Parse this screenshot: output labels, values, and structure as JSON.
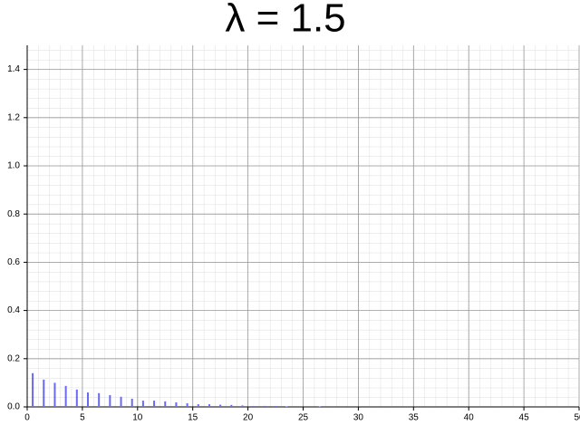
{
  "chart_data": {
    "type": "bar",
    "title": "λ = 1.5",
    "x": [
      0.5,
      1.5,
      2.5,
      3.5,
      4.5,
      5.5,
      6.5,
      7.5,
      8.5,
      9.5,
      10.5,
      11.5,
      12.5,
      13.5,
      14.5,
      15.5,
      16.5,
      17.5,
      18.5,
      19.5,
      20.5,
      21.5,
      22.5,
      23.5,
      24.5,
      25.5,
      26.5
    ],
    "values": [
      0.14,
      0.113,
      0.1,
      0.087,
      0.072,
      0.06,
      0.057,
      0.049,
      0.042,
      0.034,
      0.026,
      0.026,
      0.023,
      0.019,
      0.015,
      0.011,
      0.011,
      0.009,
      0.008,
      0.006,
      0.004,
      0.004,
      0.004,
      0.002,
      0,
      0,
      0.002
    ],
    "color": "#6a6af0",
    "xlim": [
      0,
      50
    ],
    "xticks": [
      0,
      5,
      10,
      15,
      20,
      25,
      30,
      35,
      40,
      45,
      50
    ],
    "ylim": [
      0,
      1.5
    ],
    "yticks": [
      {
        "value": 0,
        "label": "0.0"
      },
      0.2,
      0.4,
      0.6,
      0.8,
      {
        "value": 1,
        "label": "1.0"
      },
      1.2,
      1.4
    ],
    "grid": true
  }
}
